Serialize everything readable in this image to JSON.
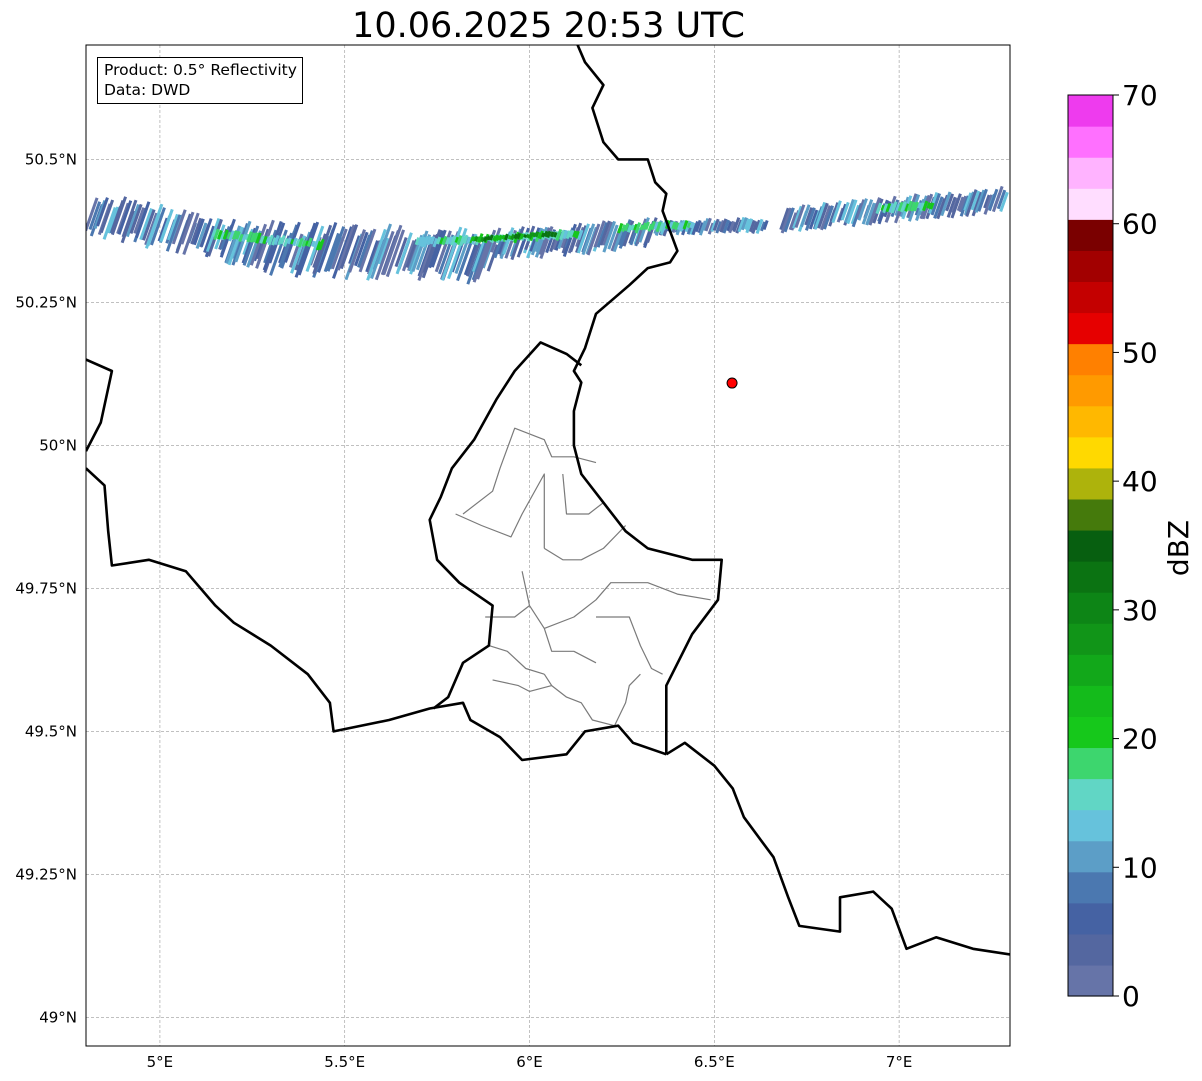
{
  "title": "10.06.2025 20:53 UTC",
  "info": {
    "product": "Product: 0.5° Reflectivity",
    "source": "Data: DWD"
  },
  "axes": {
    "lon_range": [
      4.8,
      7.3
    ],
    "lat_range": [
      48.95,
      50.7
    ],
    "lon_ticks": [
      {
        "value": 5.0,
        "label": "5°E"
      },
      {
        "value": 5.5,
        "label": "5.5°E"
      },
      {
        "value": 6.0,
        "label": "6°E"
      },
      {
        "value": 6.5,
        "label": "6.5°E"
      },
      {
        "value": 7.0,
        "label": "7°E"
      }
    ],
    "lat_ticks": [
      {
        "value": 49.0,
        "label": "49°N"
      },
      {
        "value": 49.25,
        "label": "49.25°N"
      },
      {
        "value": 49.5,
        "label": "49.5°N"
      },
      {
        "value": 49.75,
        "label": "49.75°N"
      },
      {
        "value": 50.0,
        "label": "50°N"
      },
      {
        "value": 50.25,
        "label": "50.25°N"
      },
      {
        "value": 50.5,
        "label": "50.5°N"
      }
    ],
    "grid": true
  },
  "radar_site": {
    "lon": 6.548,
    "lat": 50.109,
    "color": "#ff0000"
  },
  "colorbar": {
    "label": "dBZ",
    "min": 0,
    "max": 70,
    "step": 2.5,
    "ticks": [
      {
        "value": 0,
        "label": "0"
      },
      {
        "value": 10,
        "label": "10"
      },
      {
        "value": 20,
        "label": "20"
      },
      {
        "value": 30,
        "label": "30"
      },
      {
        "value": 40,
        "label": "40"
      },
      {
        "value": 50,
        "label": "50"
      },
      {
        "value": 60,
        "label": "60"
      },
      {
        "value": 70,
        "label": "70"
      }
    ],
    "colors": [
      "#6674a8",
      "#5467a0",
      "#4562a3",
      "#4b78b0",
      "#5c9ec7",
      "#66c2dc",
      "#61d6c5",
      "#3dd66e",
      "#16c81b",
      "#14bb1b",
      "#12a81a",
      "#119518",
      "#0d8516",
      "#0b7312",
      "#075f10",
      "#457a0c",
      "#adb30c",
      "#ffd900",
      "#ffb800",
      "#ff9a00",
      "#ff8000",
      "#e60000",
      "#c40000",
      "#a20000",
      "#7a0000",
      "#ffddff",
      "#ffb3ff",
      "#ff70ff",
      "#ee3bee"
    ]
  },
  "echo_band": {
    "segments": [
      {
        "lon": [
          4.83,
          5.3
        ],
        "lat": [
          50.405,
          50.345
        ],
        "width": 0.08
      },
      {
        "lon": [
          5.3,
          5.92
        ],
        "lat": [
          50.345,
          50.33
        ],
        "width": 0.1
      },
      {
        "lon": [
          5.92,
          6.35
        ],
        "lat": [
          50.35,
          50.37
        ],
        "width": 0.06
      },
      {
        "lon": [
          6.35,
          6.65
        ],
        "lat": [
          50.38,
          50.385
        ],
        "width": 0.03
      },
      {
        "lon": [
          6.7,
          7.3
        ],
        "lat": [
          50.395,
          50.43
        ],
        "width": 0.05
      }
    ],
    "core": [
      {
        "lon": [
          5.15,
          5.45
        ],
        "lat": [
          50.37,
          50.35
        ]
      },
      {
        "lon": [
          5.7,
          6.15
        ],
        "lat": [
          50.355,
          50.37
        ]
      },
      {
        "lon": [
          6.25,
          6.45
        ],
        "lat": [
          50.38,
          50.385
        ]
      },
      {
        "lon": [
          6.95,
          7.1
        ],
        "lat": [
          50.415,
          50.42
        ]
      }
    ],
    "strong": [
      {
        "lon": [
          5.85,
          6.08
        ],
        "lat": [
          50.36,
          50.37
        ]
      }
    ]
  },
  "borders": {
    "national": [
      [
        [
          6.13,
          50.7
        ],
        [
          6.15,
          50.67
        ],
        [
          6.2,
          50.63
        ],
        [
          6.17,
          50.59
        ],
        [
          6.2,
          50.53
        ],
        [
          6.24,
          50.5
        ],
        [
          6.32,
          50.5
        ],
        [
          6.34,
          50.46
        ],
        [
          6.37,
          50.44
        ],
        [
          6.36,
          50.41
        ],
        [
          6.4,
          50.34
        ],
        [
          6.38,
          50.32
        ],
        [
          6.32,
          50.31
        ],
        [
          6.27,
          50.28
        ],
        [
          6.18,
          50.23
        ],
        [
          6.15,
          50.17
        ],
        [
          6.12,
          50.13
        ],
        [
          6.14,
          50.11
        ],
        [
          6.12,
          50.06
        ],
        [
          6.12,
          50.0
        ],
        [
          6.14,
          49.95
        ],
        [
          6.2,
          49.9
        ],
        [
          6.26,
          49.85
        ],
        [
          6.32,
          49.82
        ],
        [
          6.44,
          49.8
        ],
        [
          6.52,
          49.8
        ],
        [
          6.51,
          49.73
        ],
        [
          6.44,
          49.67
        ],
        [
          6.37,
          49.58
        ],
        [
          6.37,
          49.46
        ]
      ],
      [
        [
          6.37,
          49.46
        ],
        [
          6.42,
          49.48
        ],
        [
          6.5,
          49.44
        ],
        [
          6.55,
          49.4
        ],
        [
          6.58,
          49.35
        ],
        [
          6.66,
          49.28
        ],
        [
          6.7,
          49.21
        ],
        [
          6.73,
          49.16
        ],
        [
          6.84,
          49.15
        ],
        [
          6.84,
          49.21
        ],
        [
          6.93,
          49.22
        ],
        [
          6.98,
          49.19
        ],
        [
          7.02,
          49.12
        ],
        [
          7.1,
          49.14
        ],
        [
          7.2,
          49.12
        ],
        [
          7.3,
          49.11
        ]
      ],
      [
        [
          6.37,
          49.46
        ],
        [
          6.28,
          49.48
        ],
        [
          6.24,
          49.51
        ],
        [
          6.15,
          49.5
        ],
        [
          6.1,
          49.46
        ],
        [
          5.98,
          49.45
        ],
        [
          5.92,
          49.49
        ],
        [
          5.84,
          49.52
        ],
        [
          5.82,
          49.55
        ],
        [
          5.73,
          49.54
        ],
        [
          5.62,
          49.52
        ],
        [
          5.47,
          49.5
        ],
        [
          5.46,
          49.55
        ],
        [
          5.4,
          49.6
        ],
        [
          5.3,
          49.65
        ],
        [
          5.2,
          49.69
        ],
        [
          5.15,
          49.72
        ],
        [
          5.07,
          49.78
        ],
        [
          4.97,
          49.8
        ],
        [
          4.87,
          49.79
        ],
        [
          4.86,
          49.85
        ],
        [
          4.85,
          49.93
        ],
        [
          4.8,
          49.96
        ]
      ],
      [
        [
          4.8,
          49.99
        ],
        [
          4.84,
          50.04
        ],
        [
          4.87,
          50.13
        ],
        [
          4.8,
          50.15
        ]
      ],
      [
        [
          5.74,
          49.54
        ],
        [
          5.78,
          49.56
        ],
        [
          5.82,
          49.62
        ],
        [
          5.89,
          49.65
        ],
        [
          5.9,
          49.72
        ],
        [
          5.81,
          49.76
        ],
        [
          5.75,
          49.8
        ],
        [
          5.73,
          49.87
        ],
        [
          5.76,
          49.91
        ],
        [
          5.79,
          49.96
        ],
        [
          5.85,
          50.01
        ],
        [
          5.91,
          50.08
        ],
        [
          5.96,
          50.13
        ],
        [
          6.03,
          50.18
        ],
        [
          6.1,
          50.16
        ],
        [
          6.14,
          50.14
        ]
      ]
    ],
    "regional": [
      [
        [
          5.82,
          49.88
        ],
        [
          5.9,
          49.92
        ],
        [
          5.92,
          49.96
        ],
        [
          5.96,
          50.03
        ],
        [
          6.04,
          50.01
        ],
        [
          6.06,
          49.98
        ],
        [
          6.12,
          49.98
        ],
        [
          6.18,
          49.97
        ]
      ],
      [
        [
          5.8,
          49.88
        ],
        [
          5.87,
          49.86
        ],
        [
          5.95,
          49.84
        ],
        [
          5.98,
          49.88
        ],
        [
          6.04,
          49.95
        ],
        [
          6.04,
          49.82
        ]
      ],
      [
        [
          6.04,
          49.82
        ],
        [
          6.09,
          49.8
        ],
        [
          6.14,
          49.8
        ],
        [
          6.2,
          49.82
        ],
        [
          6.26,
          49.86
        ]
      ],
      [
        [
          6.09,
          49.95
        ],
        [
          6.1,
          49.88
        ],
        [
          6.16,
          49.88
        ],
        [
          6.2,
          49.9
        ]
      ],
      [
        [
          5.98,
          49.78
        ],
        [
          6.0,
          49.72
        ],
        [
          6.04,
          49.68
        ],
        [
          6.06,
          49.64
        ],
        [
          6.12,
          49.64
        ],
        [
          6.18,
          49.62
        ]
      ],
      [
        [
          5.88,
          49.7
        ],
        [
          5.96,
          49.7
        ],
        [
          6.0,
          49.72
        ]
      ],
      [
        [
          6.04,
          49.68
        ],
        [
          6.12,
          49.7
        ],
        [
          6.18,
          49.73
        ],
        [
          6.22,
          49.76
        ],
        [
          6.32,
          49.76
        ],
        [
          6.4,
          49.74
        ],
        [
          6.49,
          49.73
        ]
      ],
      [
        [
          6.18,
          49.7
        ],
        [
          6.27,
          49.7
        ],
        [
          6.3,
          49.65
        ],
        [
          6.33,
          49.61
        ],
        [
          6.36,
          49.6
        ]
      ],
      [
        [
          6.04,
          49.6
        ],
        [
          6.06,
          49.58
        ],
        [
          6.1,
          49.56
        ],
        [
          6.14,
          49.55
        ],
        [
          6.17,
          49.52
        ],
        [
          6.23,
          49.51
        ]
      ],
      [
        [
          5.9,
          49.59
        ],
        [
          5.97,
          49.58
        ],
        [
          6.0,
          49.57
        ],
        [
          6.06,
          49.58
        ]
      ],
      [
        [
          6.3,
          49.6
        ],
        [
          6.27,
          49.58
        ],
        [
          6.26,
          49.55
        ],
        [
          6.23,
          49.51
        ]
      ],
      [
        [
          5.89,
          49.65
        ],
        [
          5.94,
          49.64
        ],
        [
          5.99,
          49.61
        ],
        [
          6.04,
          49.6
        ]
      ]
    ]
  }
}
